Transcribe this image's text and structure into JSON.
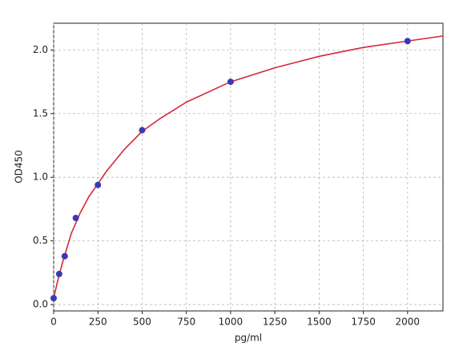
{
  "chart_data": {
    "type": "scatter",
    "xlabel": "pg/ml",
    "ylabel": "OD450",
    "xlim": [
      0,
      2200
    ],
    "ylim": [
      -0.05,
      2.21
    ],
    "xticks": [
      0,
      250,
      500,
      750,
      1000,
      1250,
      1500,
      1750,
      2000
    ],
    "yticks": [
      {
        "value": 0,
        "label": "0.0"
      },
      0.5,
      {
        "value": 1,
        "label": "1.0"
      },
      1.5,
      {
        "value": 2,
        "label": "2.0"
      }
    ],
    "grid": true,
    "series": [
      {
        "type": "line",
        "color": "#d62738",
        "x": [
          0,
          25,
          50,
          100,
          150,
          200,
          250,
          300,
          400,
          500,
          600,
          750,
          1000,
          1250,
          1500,
          1750,
          2000,
          2200
        ],
        "values": [
          0.05,
          0.2,
          0.33,
          0.56,
          0.72,
          0.85,
          0.95,
          1.05,
          1.22,
          1.36,
          1.46,
          1.59,
          1.75,
          1.86,
          1.95,
          2.02,
          2.07,
          2.11
        ]
      },
      {
        "type": "scatter",
        "color": "#3a3ab4",
        "x": [
          0,
          31.25,
          62.5,
          125,
          250,
          500,
          1000,
          2000
        ],
        "values": [
          0.05,
          0.24,
          0.38,
          0.68,
          0.94,
          1.37,
          1.75,
          2.07
        ]
      }
    ]
  }
}
